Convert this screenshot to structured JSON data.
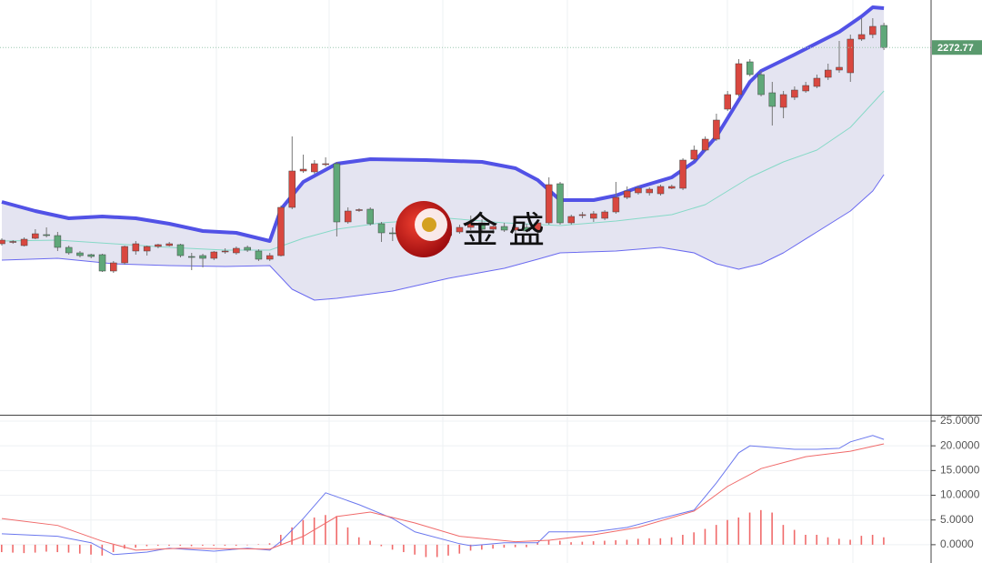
{
  "watermark": "金 盛",
  "chart_data": [
    {
      "type": "candlestick",
      "ylim": [
        1870,
        2325
      ],
      "up_color": "#d9473f",
      "down_color": "#5fa879",
      "last_price": 2272.77,
      "last_price_color": "#5a9a6e",
      "ohlc": [
        [
          2057,
          2063,
          2055,
          2061
        ],
        [
          2059,
          2061,
          2057,
          2059.5
        ],
        [
          2055,
          2064,
          2054,
          2062
        ],
        [
          2063,
          2073,
          2062,
          2068
        ],
        [
          2067,
          2075,
          2064,
          2066
        ],
        [
          2066,
          2070,
          2049,
          2053
        ],
        [
          2053,
          2055,
          2045,
          2047
        ],
        [
          2047,
          2049,
          2042,
          2044
        ],
        [
          2045,
          2046,
          2041,
          2043
        ],
        [
          2045,
          2046,
          2026,
          2027
        ],
        [
          2027,
          2038,
          2025,
          2036
        ],
        [
          2036,
          2055,
          2034,
          2054
        ],
        [
          2049,
          2060,
          2045,
          2057
        ],
        [
          2049,
          2055,
          2044,
          2054
        ],
        [
          2054,
          2057,
          2052,
          2056
        ],
        [
          2055,
          2059,
          2054,
          2057
        ],
        [
          2056,
          2057,
          2042,
          2044
        ],
        [
          2043,
          2047,
          2028,
          2042
        ],
        [
          2044,
          2046,
          2031,
          2041
        ],
        [
          2041,
          2049,
          2039,
          2048
        ],
        [
          2048,
          2052,
          2046,
          2049
        ],
        [
          2047,
          2054,
          2045,
          2052
        ],
        [
          2053,
          2055,
          2048,
          2050
        ],
        [
          2049,
          2051,
          2038,
          2040
        ],
        [
          2040,
          2047,
          2038,
          2044
        ],
        [
          2044,
          2099,
          2043,
          2097
        ],
        [
          2097,
          2175,
          2095,
          2137
        ],
        [
          2137,
          2155,
          2135,
          2139
        ],
        [
          2136,
          2149,
          2134,
          2145
        ],
        [
          2144,
          2152,
          2142,
          2145
        ],
        [
          2145,
          2147,
          2065,
          2081
        ],
        [
          2081,
          2097,
          2079,
          2093
        ],
        [
          2094,
          2096,
          2092,
          2094.5
        ],
        [
          2095,
          2097,
          2077,
          2079
        ],
        [
          2079,
          2081,
          2059,
          2069
        ],
        [
          2069,
          2075,
          2060,
          2068
        ],
        [
          2068,
          2072,
          2055,
          2060
        ],
        [
          2060,
          2070,
          2058,
          2066
        ],
        [
          2066,
          2074,
          2063,
          2071
        ],
        [
          2071,
          2075,
          2064,
          2066
        ],
        [
          2066,
          2073,
          2058,
          2070
        ],
        [
          2070,
          2078,
          2068,
          2075
        ],
        [
          2075,
          2088,
          2072,
          2080
        ],
        [
          2080,
          2084,
          2070,
          2073
        ],
        [
          2073,
          2078,
          2068,
          2076
        ],
        [
          2076,
          2080,
          2070,
          2072
        ],
        [
          2072,
          2078,
          2066,
          2075
        ],
        [
          2075,
          2079,
          2070,
          2071
        ],
        [
          2071,
          2082,
          2066,
          2080
        ],
        [
          2080,
          2130,
          2078,
          2122
        ],
        [
          2123,
          2125,
          2078,
          2080
        ],
        [
          2080,
          2089,
          2078,
          2087
        ],
        [
          2088,
          2092,
          2085,
          2089
        ],
        [
          2085,
          2093,
          2081,
          2090
        ],
        [
          2085,
          2094,
          2083,
          2092
        ],
        [
          2092,
          2125,
          2090,
          2108
        ],
        [
          2108,
          2120,
          2106,
          2115
        ],
        [
          2113,
          2121,
          2111,
          2118
        ],
        [
          2113,
          2119,
          2110,
          2117
        ],
        [
          2112,
          2122,
          2110,
          2120
        ],
        [
          2118,
          2122,
          2117,
          2120
        ],
        [
          2118,
          2151,
          2116,
          2149
        ],
        [
          2150,
          2165,
          2148,
          2160
        ],
        [
          2160,
          2175,
          2158,
          2172
        ],
        [
          2172,
          2200,
          2170,
          2193
        ],
        [
          2205,
          2225,
          2203,
          2221
        ],
        [
          2221,
          2260,
          2219,
          2255
        ],
        [
          2257,
          2260,
          2241,
          2243
        ],
        [
          2243,
          2247,
          2219,
          2221
        ],
        [
          2223,
          2235,
          2187,
          2208
        ],
        [
          2207,
          2225,
          2195,
          2221
        ],
        [
          2218,
          2230,
          2215,
          2226
        ],
        [
          2225,
          2235,
          2223,
          2231
        ],
        [
          2230,
          2243,
          2228,
          2239
        ],
        [
          2240,
          2255,
          2237,
          2248
        ],
        [
          2248,
          2280,
          2245,
          2251
        ],
        [
          2245,
          2287,
          2235,
          2282
        ],
        [
          2282,
          2305,
          2280,
          2287
        ],
        [
          2287,
          2305,
          2283,
          2296
        ],
        [
          2297,
          2300,
          2270,
          2272.77
        ]
      ],
      "band_fill": "#e4e4f1",
      "bands": [
        {
          "color": "#5252e6",
          "width": 4,
          "x": [
            0,
            3,
            6,
            9,
            12,
            15,
            18,
            21,
            24,
            25,
            27,
            30,
            33,
            38,
            43,
            46,
            48,
            50,
            53,
            55,
            57,
            60,
            62,
            64,
            66,
            67,
            68,
            71,
            75,
            77,
            78,
            79
          ],
          "values": [
            2103,
            2093,
            2085,
            2087,
            2085,
            2079,
            2071,
            2069,
            2060,
            2095,
            2125,
            2145,
            2150,
            2149,
            2147,
            2140,
            2127,
            2105,
            2105,
            2110,
            2119,
            2130,
            2147,
            2175,
            2215,
            2235,
            2247,
            2265,
            2290,
            2307,
            2317,
            2316
          ]
        },
        {
          "color": "#86d9c7",
          "width": 1,
          "x": [
            0,
            5,
            10,
            15,
            20,
            24,
            27,
            30,
            34,
            40,
            45,
            50,
            55,
            60,
            63,
            65,
            67,
            70,
            73,
            76,
            79
          ],
          "values": [
            2060,
            2061,
            2057,
            2053,
            2050,
            2050,
            2063,
            2073,
            2080,
            2085,
            2080,
            2077,
            2082,
            2089,
            2100,
            2115,
            2130,
            2147,
            2160,
            2185,
            2225
          ]
        },
        {
          "color": "#6a6af0",
          "width": 1,
          "x": [
            0,
            5,
            10,
            15,
            20,
            24,
            26,
            28,
            30,
            35,
            40,
            45,
            48,
            50,
            55,
            59,
            62,
            64,
            66,
            68,
            70,
            73,
            76,
            78,
            79
          ],
          "values": [
            2039,
            2041,
            2035,
            2033,
            2032,
            2033,
            2007,
            1995,
            1997,
            2005,
            2019,
            2030,
            2040,
            2047,
            2049,
            2053,
            2047,
            2035,
            2029,
            2035,
            2047,
            2070,
            2093,
            2115,
            2133
          ]
        }
      ]
    },
    {
      "type": "macd",
      "ylim": [
        -3.7,
        26.1
      ],
      "yticks": [
        {
          "value": 25,
          "label": "25.0000"
        },
        {
          "value": 20,
          "label": "20.0000"
        },
        {
          "value": 15,
          "label": "15.0000"
        },
        {
          "value": 10,
          "label": "10.0000"
        },
        {
          "value": 5,
          "label": "5.0000"
        },
        {
          "value": 0,
          "label": "0.0000"
        }
      ],
      "histogram": {
        "color": "#f06a6a",
        "values": [
          -1.5,
          -1.6,
          -1.7,
          -1.6,
          -1.4,
          -1.5,
          -1.6,
          -1.8,
          -2,
          -2.2,
          -1.5,
          -0.8,
          -0.6,
          -0.3,
          -0.2,
          -0.2,
          -0.2,
          -0.3,
          -0.2,
          -0.2,
          -0.2,
          -0.2,
          -0.1,
          0.1,
          0.3,
          2,
          3.5,
          5,
          5.5,
          6,
          5.8,
          3.5,
          1.5,
          0.8,
          -0.3,
          -1,
          -1.5,
          -2,
          -2.5,
          -2.5,
          -2.2,
          -1.8,
          -1.2,
          -1,
          -0.8,
          -0.6,
          -0.5,
          -0.5,
          0.5,
          1,
          0.8,
          0.5,
          0.6,
          0.7,
          0.8,
          0.9,
          1,
          1.2,
          1.3,
          1.3,
          1.5,
          2,
          2.5,
          3.2,
          4,
          5,
          5.5,
          6.5,
          7,
          6.5,
          4,
          3,
          2,
          2,
          1.5,
          1.2,
          1,
          1.8,
          2,
          1.5
        ]
      },
      "series": [
        {
          "color": "#6b78ee",
          "x": [
            0,
            5,
            8,
            10,
            13,
            15,
            19,
            22,
            24,
            25,
            27,
            29,
            32,
            35,
            37,
            41,
            42,
            45,
            48,
            49,
            53,
            56,
            59,
            62,
            64,
            66,
            67,
            71,
            73,
            75,
            76,
            78,
            79
          ],
          "values": [
            2.2,
            1.7,
            0.4,
            -2.0,
            -1.5,
            -0.7,
            -1.3,
            -0.7,
            -1.1,
            0.7,
            5.3,
            10.5,
            8.1,
            5.3,
            2.6,
            0.2,
            -0.2,
            0.4,
            0.4,
            2.6,
            2.6,
            3.5,
            5.3,
            7.0,
            12.5,
            18.6,
            20.0,
            19.3,
            19.3,
            19.5,
            20.8,
            22.1,
            21.3
          ]
        },
        {
          "color": "#f06a6a",
          "x": [
            0,
            5,
            9,
            12,
            16,
            24,
            27,
            30,
            33,
            37,
            41,
            46,
            49,
            53,
            57,
            62,
            65,
            68,
            72,
            76,
            79
          ],
          "values": [
            5.3,
            3.9,
            0.7,
            -1.1,
            -0.7,
            -0.9,
            1.7,
            5.7,
            6.6,
            4.4,
            1.7,
            0.6,
            0.9,
            2.0,
            3.5,
            6.8,
            11.8,
            15.4,
            17.8,
            18.9,
            20.4
          ]
        }
      ]
    }
  ]
}
